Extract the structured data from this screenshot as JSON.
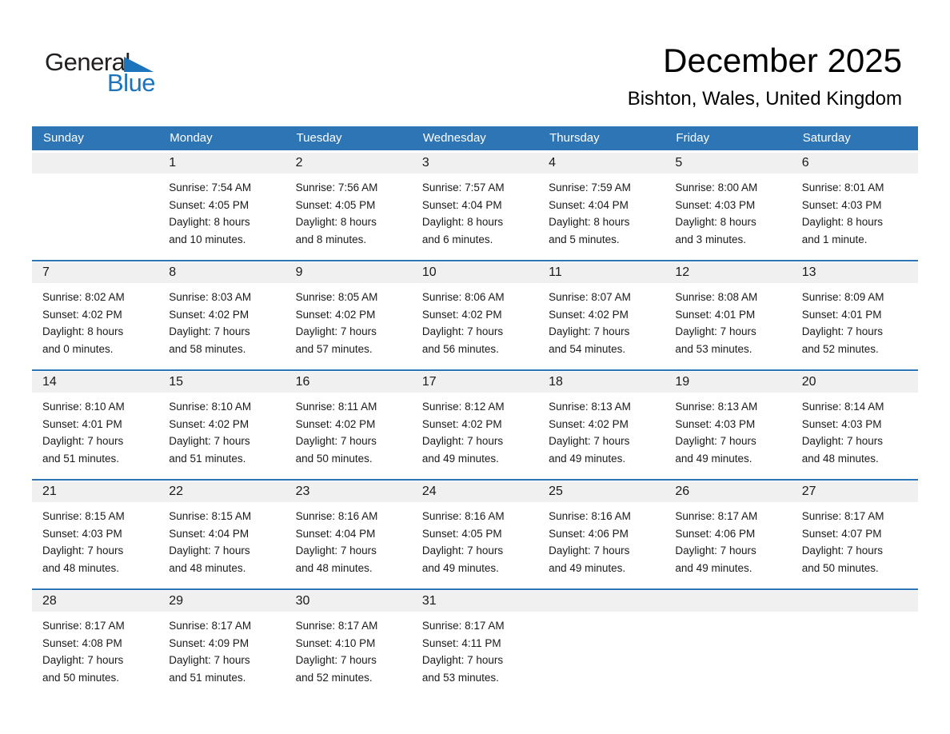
{
  "logo": {
    "text_general": "General",
    "text_blue": "Blue"
  },
  "title": "December 2025",
  "subtitle": "Bishton, Wales, United Kingdom",
  "colors": {
    "accent": "#2E75B5",
    "stripe": "#F0F0F0",
    "logo_blue": "#1C75BC",
    "logo_black": "#231F20"
  },
  "calendar": {
    "day_headers": [
      "Sunday",
      "Monday",
      "Tuesday",
      "Wednesday",
      "Thursday",
      "Friday",
      "Saturday"
    ],
    "weeks": [
      {
        "cells": [
          {
            "day": "",
            "sunrise": "",
            "sunset": "",
            "daylight1": "",
            "daylight2": ""
          },
          {
            "day": "1",
            "sunrise": "Sunrise: 7:54 AM",
            "sunset": "Sunset: 4:05 PM",
            "daylight1": "Daylight: 8 hours",
            "daylight2": "and 10 minutes."
          },
          {
            "day": "2",
            "sunrise": "Sunrise: 7:56 AM",
            "sunset": "Sunset: 4:05 PM",
            "daylight1": "Daylight: 8 hours",
            "daylight2": "and 8 minutes."
          },
          {
            "day": "3",
            "sunrise": "Sunrise: 7:57 AM",
            "sunset": "Sunset: 4:04 PM",
            "daylight1": "Daylight: 8 hours",
            "daylight2": "and 6 minutes."
          },
          {
            "day": "4",
            "sunrise": "Sunrise: 7:59 AM",
            "sunset": "Sunset: 4:04 PM",
            "daylight1": "Daylight: 8 hours",
            "daylight2": "and 5 minutes."
          },
          {
            "day": "5",
            "sunrise": "Sunrise: 8:00 AM",
            "sunset": "Sunset: 4:03 PM",
            "daylight1": "Daylight: 8 hours",
            "daylight2": "and 3 minutes."
          },
          {
            "day": "6",
            "sunrise": "Sunrise: 8:01 AM",
            "sunset": "Sunset: 4:03 PM",
            "daylight1": "Daylight: 8 hours",
            "daylight2": "and 1 minute."
          }
        ]
      },
      {
        "cells": [
          {
            "day": "7",
            "sunrise": "Sunrise: 8:02 AM",
            "sunset": "Sunset: 4:02 PM",
            "daylight1": "Daylight: 8 hours",
            "daylight2": "and 0 minutes."
          },
          {
            "day": "8",
            "sunrise": "Sunrise: 8:03 AM",
            "sunset": "Sunset: 4:02 PM",
            "daylight1": "Daylight: 7 hours",
            "daylight2": "and 58 minutes."
          },
          {
            "day": "9",
            "sunrise": "Sunrise: 8:05 AM",
            "sunset": "Sunset: 4:02 PM",
            "daylight1": "Daylight: 7 hours",
            "daylight2": "and 57 minutes."
          },
          {
            "day": "10",
            "sunrise": "Sunrise: 8:06 AM",
            "sunset": "Sunset: 4:02 PM",
            "daylight1": "Daylight: 7 hours",
            "daylight2": "and 56 minutes."
          },
          {
            "day": "11",
            "sunrise": "Sunrise: 8:07 AM",
            "sunset": "Sunset: 4:02 PM",
            "daylight1": "Daylight: 7 hours",
            "daylight2": "and 54 minutes."
          },
          {
            "day": "12",
            "sunrise": "Sunrise: 8:08 AM",
            "sunset": "Sunset: 4:01 PM",
            "daylight1": "Daylight: 7 hours",
            "daylight2": "and 53 minutes."
          },
          {
            "day": "13",
            "sunrise": "Sunrise: 8:09 AM",
            "sunset": "Sunset: 4:01 PM",
            "daylight1": "Daylight: 7 hours",
            "daylight2": "and 52 minutes."
          }
        ]
      },
      {
        "cells": [
          {
            "day": "14",
            "sunrise": "Sunrise: 8:10 AM",
            "sunset": "Sunset: 4:01 PM",
            "daylight1": "Daylight: 7 hours",
            "daylight2": "and 51 minutes."
          },
          {
            "day": "15",
            "sunrise": "Sunrise: 8:10 AM",
            "sunset": "Sunset: 4:02 PM",
            "daylight1": "Daylight: 7 hours",
            "daylight2": "and 51 minutes."
          },
          {
            "day": "16",
            "sunrise": "Sunrise: 8:11 AM",
            "sunset": "Sunset: 4:02 PM",
            "daylight1": "Daylight: 7 hours",
            "daylight2": "and 50 minutes."
          },
          {
            "day": "17",
            "sunrise": "Sunrise: 8:12 AM",
            "sunset": "Sunset: 4:02 PM",
            "daylight1": "Daylight: 7 hours",
            "daylight2": "and 49 minutes."
          },
          {
            "day": "18",
            "sunrise": "Sunrise: 8:13 AM",
            "sunset": "Sunset: 4:02 PM",
            "daylight1": "Daylight: 7 hours",
            "daylight2": "and 49 minutes."
          },
          {
            "day": "19",
            "sunrise": "Sunrise: 8:13 AM",
            "sunset": "Sunset: 4:03 PM",
            "daylight1": "Daylight: 7 hours",
            "daylight2": "and 49 minutes."
          },
          {
            "day": "20",
            "sunrise": "Sunrise: 8:14 AM",
            "sunset": "Sunset: 4:03 PM",
            "daylight1": "Daylight: 7 hours",
            "daylight2": "and 48 minutes."
          }
        ]
      },
      {
        "cells": [
          {
            "day": "21",
            "sunrise": "Sunrise: 8:15 AM",
            "sunset": "Sunset: 4:03 PM",
            "daylight1": "Daylight: 7 hours",
            "daylight2": "and 48 minutes."
          },
          {
            "day": "22",
            "sunrise": "Sunrise: 8:15 AM",
            "sunset": "Sunset: 4:04 PM",
            "daylight1": "Daylight: 7 hours",
            "daylight2": "and 48 minutes."
          },
          {
            "day": "23",
            "sunrise": "Sunrise: 8:16 AM",
            "sunset": "Sunset: 4:04 PM",
            "daylight1": "Daylight: 7 hours",
            "daylight2": "and 48 minutes."
          },
          {
            "day": "24",
            "sunrise": "Sunrise: 8:16 AM",
            "sunset": "Sunset: 4:05 PM",
            "daylight1": "Daylight: 7 hours",
            "daylight2": "and 49 minutes."
          },
          {
            "day": "25",
            "sunrise": "Sunrise: 8:16 AM",
            "sunset": "Sunset: 4:06 PM",
            "daylight1": "Daylight: 7 hours",
            "daylight2": "and 49 minutes."
          },
          {
            "day": "26",
            "sunrise": "Sunrise: 8:17 AM",
            "sunset": "Sunset: 4:06 PM",
            "daylight1": "Daylight: 7 hours",
            "daylight2": "and 49 minutes."
          },
          {
            "day": "27",
            "sunrise": "Sunrise: 8:17 AM",
            "sunset": "Sunset: 4:07 PM",
            "daylight1": "Daylight: 7 hours",
            "daylight2": "and 50 minutes."
          }
        ]
      },
      {
        "cells": [
          {
            "day": "28",
            "sunrise": "Sunrise: 8:17 AM",
            "sunset": "Sunset: 4:08 PM",
            "daylight1": "Daylight: 7 hours",
            "daylight2": "and 50 minutes."
          },
          {
            "day": "29",
            "sunrise": "Sunrise: 8:17 AM",
            "sunset": "Sunset: 4:09 PM",
            "daylight1": "Daylight: 7 hours",
            "daylight2": "and 51 minutes."
          },
          {
            "day": "30",
            "sunrise": "Sunrise: 8:17 AM",
            "sunset": "Sunset: 4:10 PM",
            "daylight1": "Daylight: 7 hours",
            "daylight2": "and 52 minutes."
          },
          {
            "day": "31",
            "sunrise": "Sunrise: 8:17 AM",
            "sunset": "Sunset: 4:11 PM",
            "daylight1": "Daylight: 7 hours",
            "daylight2": "and 53 minutes."
          },
          {
            "day": "",
            "sunrise": "",
            "sunset": "",
            "daylight1": "",
            "daylight2": ""
          },
          {
            "day": "",
            "sunrise": "",
            "sunset": "",
            "daylight1": "",
            "daylight2": ""
          },
          {
            "day": "",
            "sunrise": "",
            "sunset": "",
            "daylight1": "",
            "daylight2": ""
          }
        ]
      }
    ]
  }
}
